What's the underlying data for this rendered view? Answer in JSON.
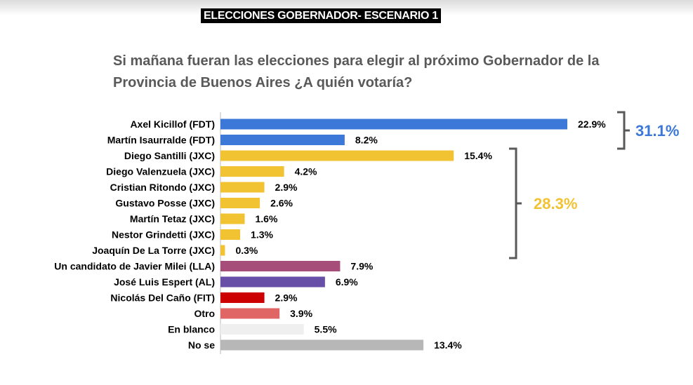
{
  "header": {
    "title": "ELECCIONES GOBERNADOR- ESCENARIO 1"
  },
  "question": "Si mañana fueran las elecciones para elegir al próximo Gobernador de la Provincia de Buenos Aires ¿A quién votaría?",
  "chart_data": {
    "type": "bar",
    "orientation": "horizontal",
    "categories": [
      "Axel Kicillof (FDT)",
      "Martín Isaurralde (FDT)",
      "Diego Santilli (JXC)",
      "Diego Valenzuela (JXC)",
      "Cristian Ritondo (JXC)",
      "Gustavo Posse (JXC)",
      "Martín Tetaz (JXC)",
      "Nestor Grindetti (JXC)",
      "Joaquín De La Torre (JXC)",
      "Un candidato de Javier Milei (LLA)",
      "José Luis Espert (AL)",
      "Nicolás Del Caño (FIT)",
      "Otro",
      "En blanco",
      "No se"
    ],
    "values": [
      22.9,
      8.2,
      15.4,
      4.2,
      2.9,
      2.6,
      1.6,
      1.3,
      0.3,
      7.9,
      6.9,
      2.9,
      3.9,
      5.5,
      13.4
    ],
    "labels": [
      "22.9%",
      "8.2%",
      "15.4%",
      "4.2%",
      "2.9%",
      "2.6%",
      "1.6%",
      "1.3%",
      "0.3%",
      "7.9%",
      "6.9%",
      "2.9%",
      "3.9%",
      "5.5%",
      "13.4%"
    ],
    "colors": [
      "#3c78d8",
      "#3c78d8",
      "#f1c232",
      "#f1c232",
      "#f1c232",
      "#f1c232",
      "#f1c232",
      "#f1c232",
      "#f1c232",
      "#a64d79",
      "#674ea7",
      "#cc0000",
      "#e06666",
      "#efefef",
      "#b7b7b7"
    ],
    "xlim": [
      0,
      22.9
    ],
    "grid": false,
    "annotations": [
      {
        "text": "31.1%",
        "group": "FDT",
        "from": 0,
        "to": 1,
        "color": "#3c78d8"
      },
      {
        "text": "28.3%",
        "group": "JXC",
        "from": 2,
        "to": 8,
        "color": "#f1c232"
      }
    ]
  }
}
